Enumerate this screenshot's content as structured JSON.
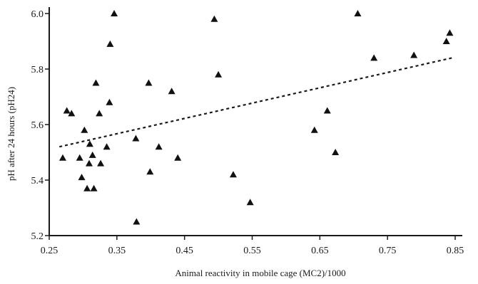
{
  "chart_data": {
    "type": "scatter",
    "xlabel": "Animal reactivity in mobile cage (MC2)/1000",
    "ylabel": "pH after 24 hours (pH24)",
    "xlim": [
      0.25,
      0.85
    ],
    "ylim": [
      5.2,
      6.0
    ],
    "x_ticks": [
      "0.25",
      "0.35",
      "0.45",
      "0.55",
      "0.65",
      "0.75",
      "0.85"
    ],
    "y_ticks": [
      "5.2",
      "5.4",
      "5.6",
      "5.8",
      "6.0"
    ],
    "grid": false,
    "marker": "triangle",
    "points": [
      {
        "x": 0.27,
        "y": 5.48
      },
      {
        "x": 0.276,
        "y": 5.65
      },
      {
        "x": 0.283,
        "y": 5.64
      },
      {
        "x": 0.295,
        "y": 5.48
      },
      {
        "x": 0.298,
        "y": 5.41
      },
      {
        "x": 0.302,
        "y": 5.58
      },
      {
        "x": 0.306,
        "y": 5.37
      },
      {
        "x": 0.309,
        "y": 5.46
      },
      {
        "x": 0.31,
        "y": 5.53
      },
      {
        "x": 0.314,
        "y": 5.49
      },
      {
        "x": 0.316,
        "y": 5.37
      },
      {
        "x": 0.319,
        "y": 5.75
      },
      {
        "x": 0.324,
        "y": 5.64
      },
      {
        "x": 0.326,
        "y": 5.46
      },
      {
        "x": 0.335,
        "y": 5.52
      },
      {
        "x": 0.339,
        "y": 5.68
      },
      {
        "x": 0.34,
        "y": 5.89
      },
      {
        "x": 0.346,
        "y": 6.0
      },
      {
        "x": 0.378,
        "y": 5.55
      },
      {
        "x": 0.379,
        "y": 5.25
      },
      {
        "x": 0.397,
        "y": 5.75
      },
      {
        "x": 0.399,
        "y": 5.43
      },
      {
        "x": 0.412,
        "y": 5.52
      },
      {
        "x": 0.431,
        "y": 5.72
      },
      {
        "x": 0.44,
        "y": 5.48
      },
      {
        "x": 0.494,
        "y": 5.98
      },
      {
        "x": 0.5,
        "y": 5.78
      },
      {
        "x": 0.522,
        "y": 5.42
      },
      {
        "x": 0.547,
        "y": 5.32
      },
      {
        "x": 0.642,
        "y": 5.58
      },
      {
        "x": 0.661,
        "y": 5.65
      },
      {
        "x": 0.673,
        "y": 5.5
      },
      {
        "x": 0.706,
        "y": 6.0
      },
      {
        "x": 0.73,
        "y": 5.84
      },
      {
        "x": 0.789,
        "y": 5.85
      },
      {
        "x": 0.837,
        "y": 5.9
      },
      {
        "x": 0.842,
        "y": 5.93
      }
    ],
    "trendline": {
      "style": "dashed",
      "from": {
        "x": 0.265,
        "y": 5.52
      },
      "to": {
        "x": 0.845,
        "y": 5.84
      }
    }
  }
}
